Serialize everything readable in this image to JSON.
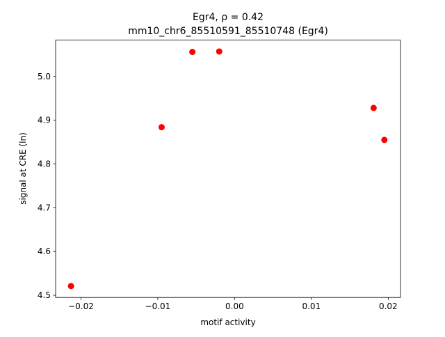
{
  "chart_data": {
    "type": "scatter",
    "title": "Egr4, ρ = 0.42",
    "subtitle": "mm10_chr6_85510591_85510748 (Egr4)",
    "x_label": "motif activity",
    "y_label": "signal at CRE (ln)",
    "color": "#ff0000",
    "series": [
      {
        "x": [
          -0.0213,
          -0.0095,
          -0.0055,
          -0.002,
          0.0181,
          0.0195
        ],
        "values": [
          4.521,
          4.884,
          5.056,
          5.057,
          4.928,
          4.855
        ]
      }
    ],
    "xlim": [
      -0.0233,
      0.0216
    ],
    "ylim": [
      4.495,
      5.083
    ],
    "xticks": [
      {
        "value": -0.02,
        "label": "−0.02"
      },
      {
        "value": -0.01,
        "label": "−0.01"
      },
      {
        "value": 0,
        "label": "0.00"
      },
      0.01,
      0.02
    ],
    "yticks": [
      4.5,
      4.6,
      4.7,
      4.8,
      4.9,
      {
        "value": 5,
        "label": "5.0"
      }
    ]
  }
}
